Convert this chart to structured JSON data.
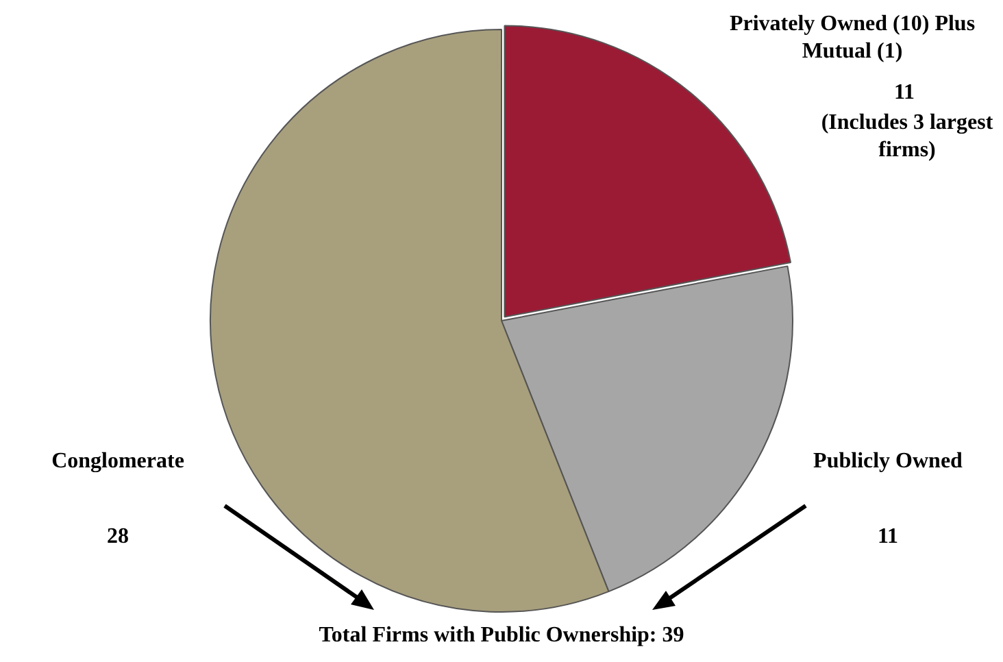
{
  "chart_data": {
    "type": "pie",
    "categories": [
      "Privately Owned (10) Plus Mutual (1)",
      "Publicly Owned",
      "Conglomerate"
    ],
    "values": [
      11,
      11,
      28
    ],
    "colors": [
      "#9b1b35",
      "#a6a6a6",
      "#a89f7d"
    ],
    "data_labels": true,
    "legend": false,
    "annotations": [
      "(Includes 3 largest firms)",
      "Total Firms with Public Ownership: 39"
    ]
  }
}
